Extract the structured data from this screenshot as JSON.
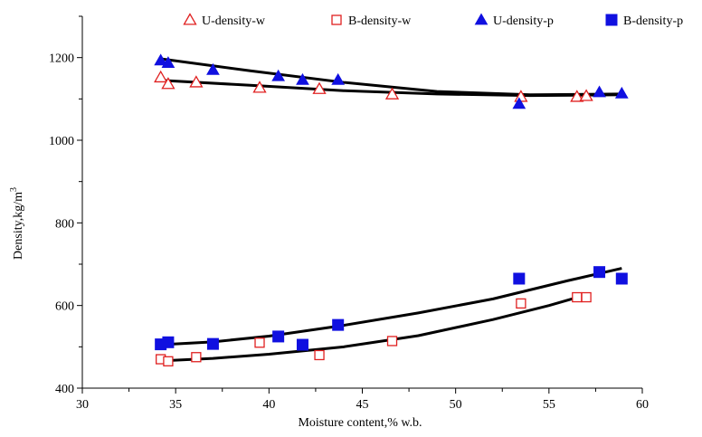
{
  "chart_data": {
    "type": "scatter",
    "title": "",
    "xlabel": "Moisture content,% w.b.",
    "ylabel": "Density,kg/m",
    "ylabel_superscript": "3",
    "xlim": [
      30,
      60
    ],
    "ylim": [
      400,
      1300
    ],
    "xticks": [
      "30",
      "35",
      "40",
      "45",
      "50",
      "55",
      "60"
    ],
    "yticks": [
      "400",
      "600",
      "800",
      "1000",
      "1200"
    ],
    "grid": false,
    "legend_position": "top",
    "series": [
      {
        "name": "U-density-w",
        "marker": "triangle-open",
        "color": "#e02020",
        "x": [
          34.2,
          34.6,
          36.1,
          39.5,
          42.7,
          46.6,
          53.5,
          56.5,
          57.0
        ],
        "y": [
          1152,
          1136,
          1140,
          1127,
          1124,
          1111,
          1105,
          1105,
          1107
        ]
      },
      {
        "name": "B-density-w",
        "marker": "square-open",
        "color": "#e02020",
        "x": [
          34.2,
          34.6,
          36.1,
          39.5,
          42.7,
          46.6,
          53.5,
          56.5,
          57.0
        ],
        "y": [
          470,
          465,
          475,
          510,
          480,
          514,
          605,
          620,
          620
        ]
      },
      {
        "name": "U-density-p",
        "marker": "triangle-filled",
        "color": "#1010e0",
        "x": [
          34.2,
          34.6,
          37.0,
          40.5,
          41.8,
          43.7,
          53.4,
          57.7,
          58.9
        ],
        "y": [
          1193,
          1187,
          1170,
          1155,
          1146,
          1146,
          1088,
          1116,
          1113
        ]
      },
      {
        "name": "B-density-p",
        "marker": "square-filled",
        "color": "#1010e0",
        "x": [
          34.2,
          34.6,
          37.0,
          40.5,
          41.8,
          43.7,
          53.4,
          57.7,
          58.9
        ],
        "y": [
          506,
          511,
          507,
          525,
          505,
          553,
          665,
          681,
          665
        ]
      }
    ],
    "trendlines": [
      {
        "x": [
          34.2,
          39,
          44,
          49,
          54,
          58.9
        ],
        "y": [
          1145,
          1133,
          1120,
          1112,
          1108,
          1110
        ]
      },
      {
        "x": [
          34.2,
          39,
          44,
          49,
          54,
          58.9
        ],
        "y": [
          1197,
          1168,
          1140,
          1118,
          1110,
          1112
        ]
      },
      {
        "x": [
          34.2,
          37,
          40,
          44,
          48,
          52,
          55,
          57
        ],
        "y": [
          466,
          472,
          482,
          500,
          527,
          566,
          600,
          626
        ]
      },
      {
        "x": [
          34.2,
          37,
          40,
          44,
          48,
          52,
          56,
          58.9
        ],
        "y": [
          505,
          512,
          526,
          552,
          582,
          616,
          660,
          690
        ]
      }
    ]
  }
}
